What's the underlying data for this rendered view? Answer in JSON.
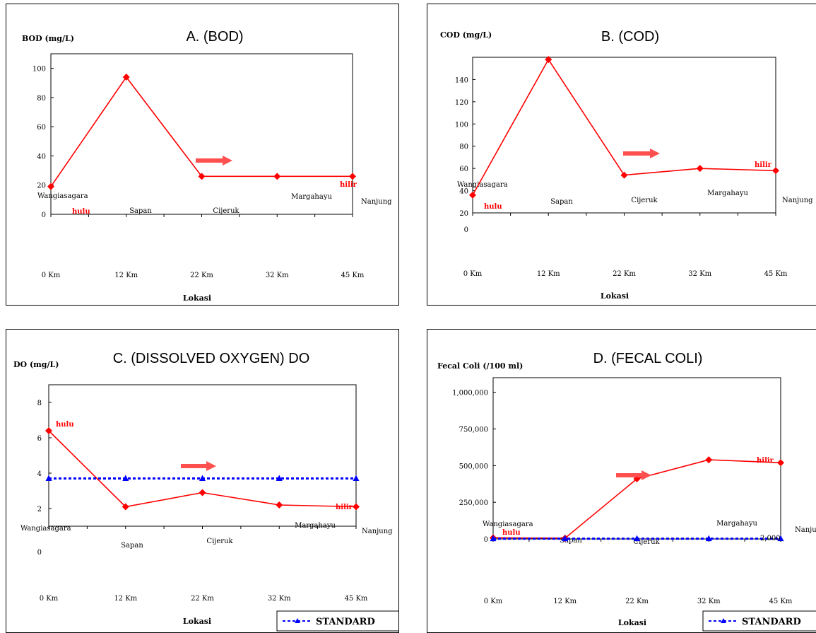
{
  "chart_data": [
    {
      "type": "line",
      "title": "A. (BOD)",
      "ylabel": "BOD (mg/L)",
      "xlabel": "Lokasi",
      "categories": [
        "0 Km",
        "12 Km",
        "22 Km",
        "32 Km",
        "45 Km"
      ],
      "site_names": [
        "Wangiasagara",
        "Sapan",
        "Cijeruk",
        "Margahayu",
        "Nanjung"
      ],
      "ylim": [
        0,
        110
      ],
      "y_ticks": [
        0,
        20,
        40,
        60,
        80,
        100
      ],
      "series": [
        {
          "values": [
            19,
            94,
            26,
            26,
            26
          ],
          "color": "#ff0000"
        }
      ],
      "annotations": {
        "upstream": "hulu",
        "downstream": "hilir"
      }
    },
    {
      "type": "line",
      "title": "B. (COD)",
      "ylabel": "COD (mg/L)",
      "xlabel": "Lokasi",
      "categories": [
        "0 Km",
        "12 Km",
        "22 Km",
        "32 Km",
        "45 Km"
      ],
      "site_names": [
        "Wangiasagara",
        "Sapan",
        "Cijeruk",
        "Margahayu",
        "Nanjung"
      ],
      "ylim": [
        20,
        160
      ],
      "y_ticks": [
        0,
        20,
        40,
        60,
        80,
        100,
        120,
        140
      ],
      "series": [
        {
          "values": [
            36,
            158,
            54,
            60,
            58
          ],
          "color": "#ff0000"
        }
      ],
      "annotations": {
        "upstream": "hulu",
        "downstream": "hilir"
      }
    },
    {
      "type": "line",
      "title": "C. (DISSOLVED OXYGEN) DO",
      "ylabel": "DO (mg/L)",
      "xlabel": "Lokasi",
      "categories": [
        "0 Km",
        "12 Km",
        "22 Km",
        "32 Km",
        "45 Km"
      ],
      "site_names": [
        "Wangiasagara",
        "Sapan",
        "Cijeruk",
        "Margahayu",
        "Nanjung"
      ],
      "ylim": [
        1,
        9
      ],
      "y_ticks": [
        0,
        2,
        4,
        6,
        8
      ],
      "series": [
        {
          "values": [
            6.4,
            2.1,
            2.9,
            2.2,
            2.1
          ],
          "color": "#ff0000"
        },
        {
          "name": "STANDARD",
          "values": [
            3.7,
            3.7,
            3.7,
            3.7,
            3.7
          ],
          "color": "#0000ff"
        }
      ],
      "annotations": {
        "upstream": "hulu",
        "downstream": "hilir"
      },
      "legend": {
        "position": "bottom-right",
        "label": "STANDARD"
      }
    },
    {
      "type": "line",
      "title": "D. (FECAL COLI)",
      "ylabel": "Fecal Coli (/100 ml)",
      "xlabel": "Lokasi",
      "categories": [
        "0 Km",
        "12 Km",
        "22 Km",
        "32 Km",
        "45 Km"
      ],
      "site_names": [
        "Wangiasagara",
        "Sapan",
        "Cijeruk",
        "Margahayu",
        "Nanjung"
      ],
      "ylim": [
        0,
        1100000
      ],
      "y_ticks": [
        0,
        250000,
        500000,
        750000,
        1000000
      ],
      "y_tick_labels": [
        "0",
        "250,000",
        "500,000",
        "750,000",
        "1,000,000"
      ],
      "series": [
        {
          "values": [
            8000,
            5000,
            410000,
            540000,
            520000
          ],
          "color": "#ff0000"
        },
        {
          "name": "STANDARD",
          "values": [
            2000,
            2000,
            2000,
            2000,
            2000
          ],
          "color": "#0000ff"
        }
      ],
      "annotations": {
        "upstream": "hulu",
        "downstream": "hilir",
        "standard_value": "2,000"
      },
      "legend": {
        "position": "bottom-right",
        "label": "STANDARD"
      }
    }
  ]
}
